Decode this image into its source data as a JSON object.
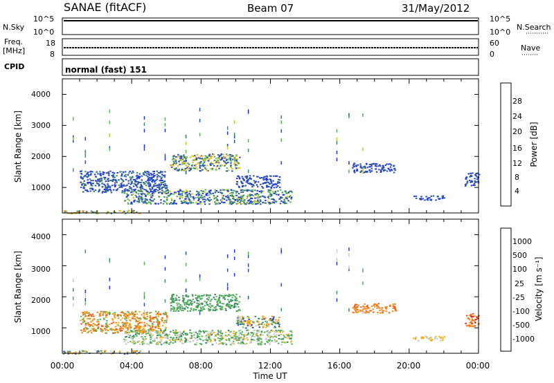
{
  "header": {
    "title": "SANAE (fitACF)",
    "beam": "Beam 07",
    "date": "31/May/2012"
  },
  "strip_nsky": {
    "left_label": "N.Sky",
    "right_label": "N.Search",
    "left_ticks": [
      "10^5",
      "10^0"
    ],
    "right_ticks": [
      "10^5",
      "10^0"
    ]
  },
  "strip_freq": {
    "left_label_1": "Freq.",
    "left_label_2": "[MHz]",
    "right_label": "Nave",
    "left_ticks": [
      "18",
      "8"
    ],
    "right_ticks": [
      "60",
      "0"
    ]
  },
  "strip_cpid": {
    "label": "CPID",
    "mode_text": "normal (fast) 151"
  },
  "x_axis": {
    "label": "Time UT",
    "tick_labels": [
      "00:00",
      "04:00",
      "08:00",
      "12:00",
      "16:00",
      "20:00",
      "00:00"
    ],
    "range_hours": [
      0,
      24
    ]
  },
  "panels": {
    "power": {
      "ylabel": "Slant Range [km]",
      "y_tick_labels": [
        "1000",
        "2000",
        "3000",
        "4000"
      ],
      "colorbar_label": "Power [dB]",
      "colorbar_ticks": [
        "4",
        "8",
        "12",
        "16",
        "20",
        "24",
        "28"
      ]
    },
    "velocity": {
      "ylabel": "Slant Range [km]",
      "y_tick_labels": [
        "1000",
        "2000",
        "3000",
        "4000"
      ],
      "colorbar_label": "Velocity [m s⁻¹]",
      "colorbar_ticks": [
        "1000",
        "500",
        "100",
        "25",
        "-25",
        "-100",
        "-500",
        "-1000"
      ]
    }
  },
  "chart_data": {
    "type": "heatmap",
    "x_unit": "hours UT",
    "y_unit": "km",
    "xlim": [
      0,
      24
    ],
    "ylim": [
      180,
      4500
    ],
    "power_colors": [
      "#1e32f0",
      "#2850b4",
      "#3c8c64",
      "#5ab45a",
      "#c8c828",
      "#f0b41e",
      "#f08c1e",
      "#f05a14",
      "#e61e1e"
    ],
    "velocity_colors": [
      "#1e32f0",
      "#2850b4",
      "#3c8c64",
      "#5ab45a",
      "#c8c8c8",
      "#f0b41e",
      "#f08c1e",
      "#f05a14",
      "#e61e1e"
    ],
    "echo_regions": [
      {
        "t0": 1.0,
        "t1": 6.0,
        "r0": 850,
        "r1": 1550,
        "power": "weak-blue",
        "velocity": "orange-yellow"
      },
      {
        "t0": 3.5,
        "t1": 13.2,
        "r0": 480,
        "r1": 950,
        "power": "blue-green",
        "velocity": "green-grey"
      },
      {
        "t0": 6.2,
        "t1": 10.2,
        "r0": 1550,
        "r1": 2100,
        "power": "blue-yellow",
        "velocity": "green"
      },
      {
        "t0": 10.0,
        "t1": 12.5,
        "r0": 1000,
        "r1": 1400,
        "power": "blue",
        "velocity": "mixed"
      },
      {
        "t0": 16.7,
        "t1": 19.2,
        "r0": 1500,
        "r1": 1800,
        "power": "blue",
        "velocity": "orange"
      },
      {
        "t0": 20.2,
        "t1": 22.0,
        "r0": 600,
        "r1": 750,
        "power": "blue",
        "velocity": "yellow"
      },
      {
        "t0": 23.2,
        "t1": 24.0,
        "r0": 1050,
        "r1": 1500,
        "power": "blue",
        "velocity": "red-orange"
      },
      {
        "t0": 0.0,
        "t1": 4.5,
        "r0": 180,
        "r1": 280,
        "power": "mixed",
        "velocity": "mixed"
      }
    ],
    "nsky_level": "near 10^5",
    "freq_MHz": 12,
    "nave": 30
  }
}
